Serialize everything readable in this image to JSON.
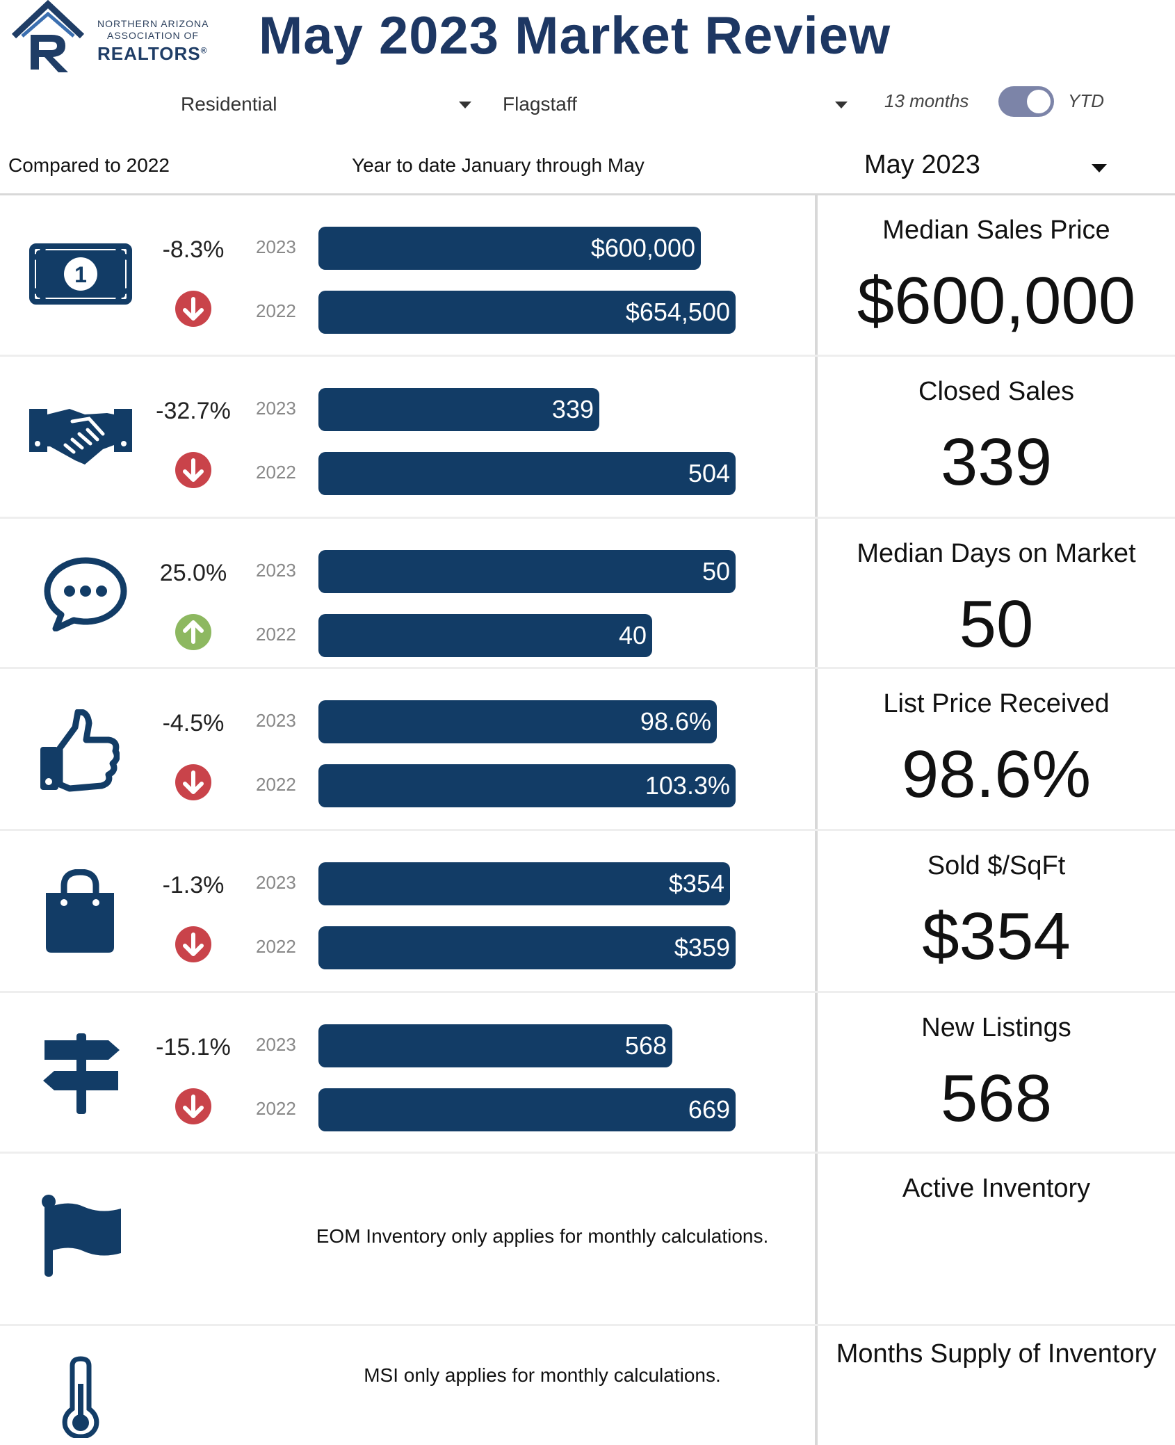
{
  "logo": {
    "line1": "NORTHERN ARIZONA",
    "line2": "ASSOCIATION OF",
    "line3": "REALTORS",
    "reg": "®"
  },
  "title": "May 2023 Market Review",
  "filters": {
    "property_type": "Residential",
    "area": "Flagstaff",
    "toggle_left": "13 months",
    "toggle_right": "YTD",
    "toggle_state": "YTD"
  },
  "subheader": {
    "compared": "Compared to 2022",
    "range": "Year to date January through May",
    "month": "May 2023"
  },
  "colors": {
    "bar": "#123c66",
    "down": "#c9434a",
    "up": "#8db860",
    "title": "#1d3763"
  },
  "chart_data": {
    "type": "bar",
    "metrics": [
      {
        "name": "Median Sales Price",
        "icon": "money-icon",
        "change": "-8.3%",
        "direction": "down",
        "year_a": "2023",
        "year_b": "2022",
        "value_a": 600000,
        "value_b": 654500,
        "label_a": "$600,000",
        "label_b": "$654,500",
        "big": "$600,000"
      },
      {
        "name": "Closed Sales",
        "icon": "handshake-icon",
        "change": "-32.7%",
        "direction": "down",
        "year_a": "2023",
        "year_b": "2022",
        "value_a": 339,
        "value_b": 504,
        "label_a": "339",
        "label_b": "504",
        "big": "339"
      },
      {
        "name": "Median Days on Market",
        "icon": "chat-bubble-icon",
        "change": "25.0%",
        "direction": "up",
        "year_a": "2023",
        "year_b": "2022",
        "value_a": 50,
        "value_b": 40,
        "label_a": "50",
        "label_b": "40",
        "big": "50"
      },
      {
        "name": "List Price Received",
        "icon": "thumbs-up-icon",
        "change": "-4.5%",
        "direction": "down",
        "year_a": "2023",
        "year_b": "2022",
        "value_a": 98.6,
        "value_b": 103.3,
        "label_a": "98.6%",
        "label_b": "103.3%",
        "big": "98.6%"
      },
      {
        "name": "Sold $/SqFt",
        "icon": "shopping-bag-icon",
        "change": "-1.3%",
        "direction": "down",
        "year_a": "2023",
        "year_b": "2022",
        "value_a": 354,
        "value_b": 359,
        "label_a": "$354",
        "label_b": "$359",
        "big": "$354"
      },
      {
        "name": "New Listings",
        "icon": "signpost-icon",
        "change": "-15.1%",
        "direction": "down",
        "year_a": "2023",
        "year_b": "2022",
        "value_a": 568,
        "value_b": 669,
        "label_a": "568",
        "label_b": "669",
        "big": "568"
      }
    ]
  },
  "inventory": {
    "title": "Active Inventory",
    "note": "EOM Inventory only applies for monthly calculations."
  },
  "msi": {
    "title": "Months Supply of Inventory",
    "note": "MSI only applies for monthly calculations."
  }
}
